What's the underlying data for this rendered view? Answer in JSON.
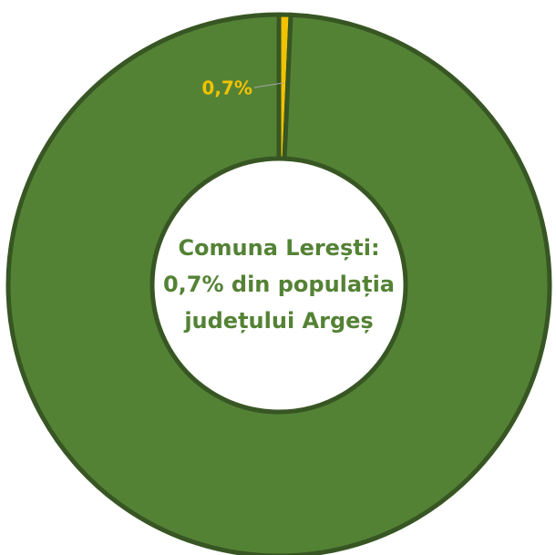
{
  "chart_data": {
    "type": "donut",
    "values": [
      0.7,
      99.3
    ],
    "value_labels": [
      "0,7%",
      null
    ],
    "colors": [
      "#f2c200",
      "#548235"
    ],
    "annotation": [
      "Comuna Lerești:",
      "0,7% din populația",
      "județului Argeș"
    ],
    "start": "top",
    "direction": "clockwise"
  }
}
